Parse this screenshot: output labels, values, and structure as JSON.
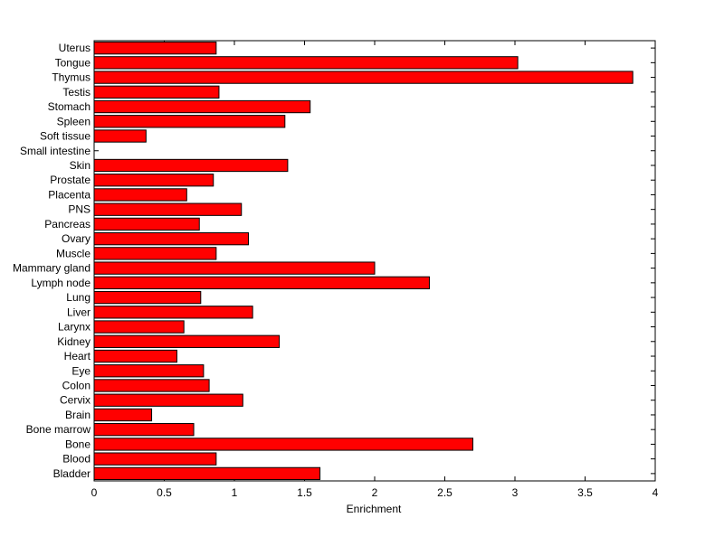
{
  "chart_data": {
    "type": "bar",
    "orientation": "horizontal",
    "title": "",
    "xlabel": "Enrichment",
    "ylabel": "",
    "xlim": [
      0,
      4
    ],
    "x_ticks": [
      0,
      0.5,
      1,
      1.5,
      2,
      2.5,
      3,
      3.5,
      4
    ],
    "x_tick_labels": [
      "0",
      "0.5",
      "1",
      "1.5",
      "2",
      "2.5",
      "3",
      "3.5",
      "4"
    ],
    "grid": false,
    "legend": "none",
    "bar_color": "#ff0000",
    "categories": [
      "Uterus",
      "Tongue",
      "Thymus",
      "Testis",
      "Stomach",
      "Spleen",
      "Soft tissue",
      "Small intestine",
      "Skin",
      "Prostate",
      "Placenta",
      "PNS",
      "Pancreas",
      "Ovary",
      "Muscle",
      "Mammary gland",
      "Lymph node",
      "Lung",
      "Liver",
      "Larynx",
      "Kidney",
      "Heart",
      "Eye",
      "Colon",
      "Cervix",
      "Brain",
      "Bone marrow",
      "Bone",
      "Blood",
      "Bladder"
    ],
    "values": [
      0.87,
      3.02,
      3.84,
      0.89,
      1.54,
      1.36,
      0.37,
      0.0,
      1.38,
      0.85,
      0.66,
      1.05,
      0.75,
      1.1,
      0.87,
      2.0,
      2.39,
      0.76,
      1.13,
      0.64,
      1.32,
      0.59,
      0.78,
      0.82,
      1.06,
      0.41,
      0.71,
      2.7,
      0.87,
      1.61
    ]
  }
}
